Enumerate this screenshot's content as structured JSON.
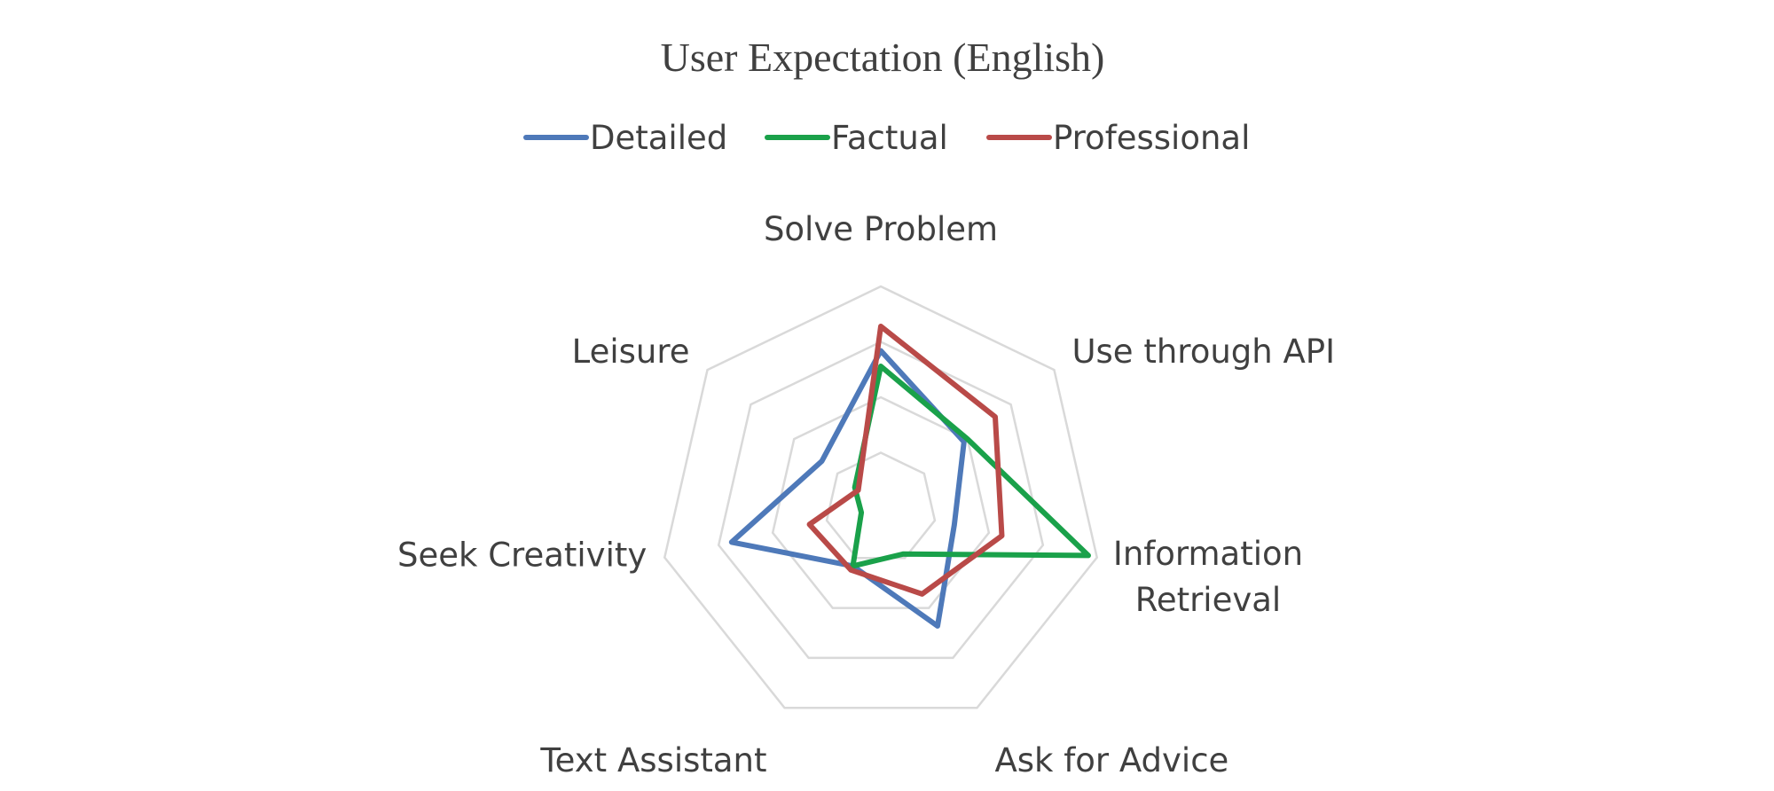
{
  "chart_data": {
    "type": "radar",
    "title": "User Expectation (English)",
    "categories": [
      "Solve Problem",
      "Use through API",
      "Information\nRetrieval",
      "Ask for Advice",
      "Text Assistant",
      "Seek Creativity",
      "Leisure"
    ],
    "series": [
      {
        "name": "Detailed",
        "color": "#4e79b9",
        "values": [
          0.71,
          0.48,
          0.34,
          0.59,
          0.29,
          0.69,
          0.34
        ]
      },
      {
        "name": "Factual",
        "color": "#1aa14a",
        "values": [
          0.64,
          0.5,
          0.96,
          0.23,
          0.29,
          0.09,
          0.15
        ]
      },
      {
        "name": "Professional",
        "color": "#b94a48",
        "values": [
          0.82,
          0.66,
          0.56,
          0.43,
          0.31,
          0.33,
          0.13
        ]
      }
    ],
    "rlim": [
      0,
      1
    ],
    "gridlines": 4,
    "legend_position": "top-center"
  }
}
